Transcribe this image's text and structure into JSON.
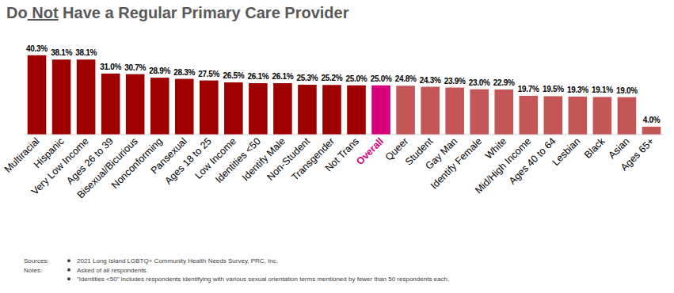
{
  "chart_data": {
    "type": "bar",
    "title": "Do Not Have a Regular Primary Care Provider",
    "categories": [
      "Multiracial",
      "Hispanic",
      "Very Low Income",
      "Ages 26 to 39",
      "Bisexual/Bicurious",
      "Nonconforming",
      "Pansexual",
      "Ages 18 to 25",
      "Low Income",
      "Identities <50",
      "Identify Male",
      "Non-Student",
      "Transgender",
      "Not Trans",
      "Overall",
      "Queer",
      "Student",
      "Gay Man",
      "Identify Female",
      "White",
      "Mid/High Income",
      "Ages 40 to 64",
      "Lesbian",
      "Black",
      "Asian",
      "Ages 65+"
    ],
    "values": [
      40.3,
      38.1,
      38.1,
      31.0,
      30.7,
      28.9,
      28.3,
      27.5,
      26.5,
      26.1,
      26.1,
      25.3,
      25.2,
      25.0,
      25.0,
      24.8,
      24.3,
      23.9,
      23.0,
      22.9,
      19.7,
      19.5,
      19.3,
      19.1,
      19.0,
      4.0
    ],
    "value_labels": [
      "40.3%",
      "38.1%",
      "38.1%",
      "31.0%",
      "30.7%",
      "28.9%",
      "28.3%",
      "27.5%",
      "26.5%",
      "26.1%",
      "26.1%",
      "25.3%",
      "25.2%",
      "25.0%",
      "25.0%",
      "24.8%",
      "24.3%",
      "23.9%",
      "23.0%",
      "22.9%",
      "19.7%",
      "19.5%",
      "19.3%",
      "19.1%",
      "19.0%",
      "4.0%"
    ],
    "colors": [
      "#9e0000",
      "#9e0000",
      "#9e0000",
      "#9e0000",
      "#9e0000",
      "#9e0000",
      "#9e0000",
      "#9e0000",
      "#9e0000",
      "#9e0000",
      "#9e0000",
      "#9e0000",
      "#9e0000",
      "#9e0000",
      "#d6007a",
      "#c45657",
      "#c45657",
      "#c45657",
      "#c45657",
      "#c45657",
      "#c45657",
      "#c45657",
      "#c45657",
      "#c45657",
      "#c45657",
      "#c45657"
    ],
    "ylim": [
      0,
      41
    ],
    "data_labels": true,
    "tick_labels": "x",
    "grid": false,
    "sources_label": "Sources:",
    "sources": [
      "2021 Long Island LGBTQ+ Community Health Needs Survey, PRC, Inc."
    ],
    "notes_label": "Notes:",
    "notes": [
      "Asked of all respondents.",
      "\"Identities <50\" includes respondents identifying with various sexual orientation terms mentioned by fewer than 50 respondents each."
    ]
  }
}
